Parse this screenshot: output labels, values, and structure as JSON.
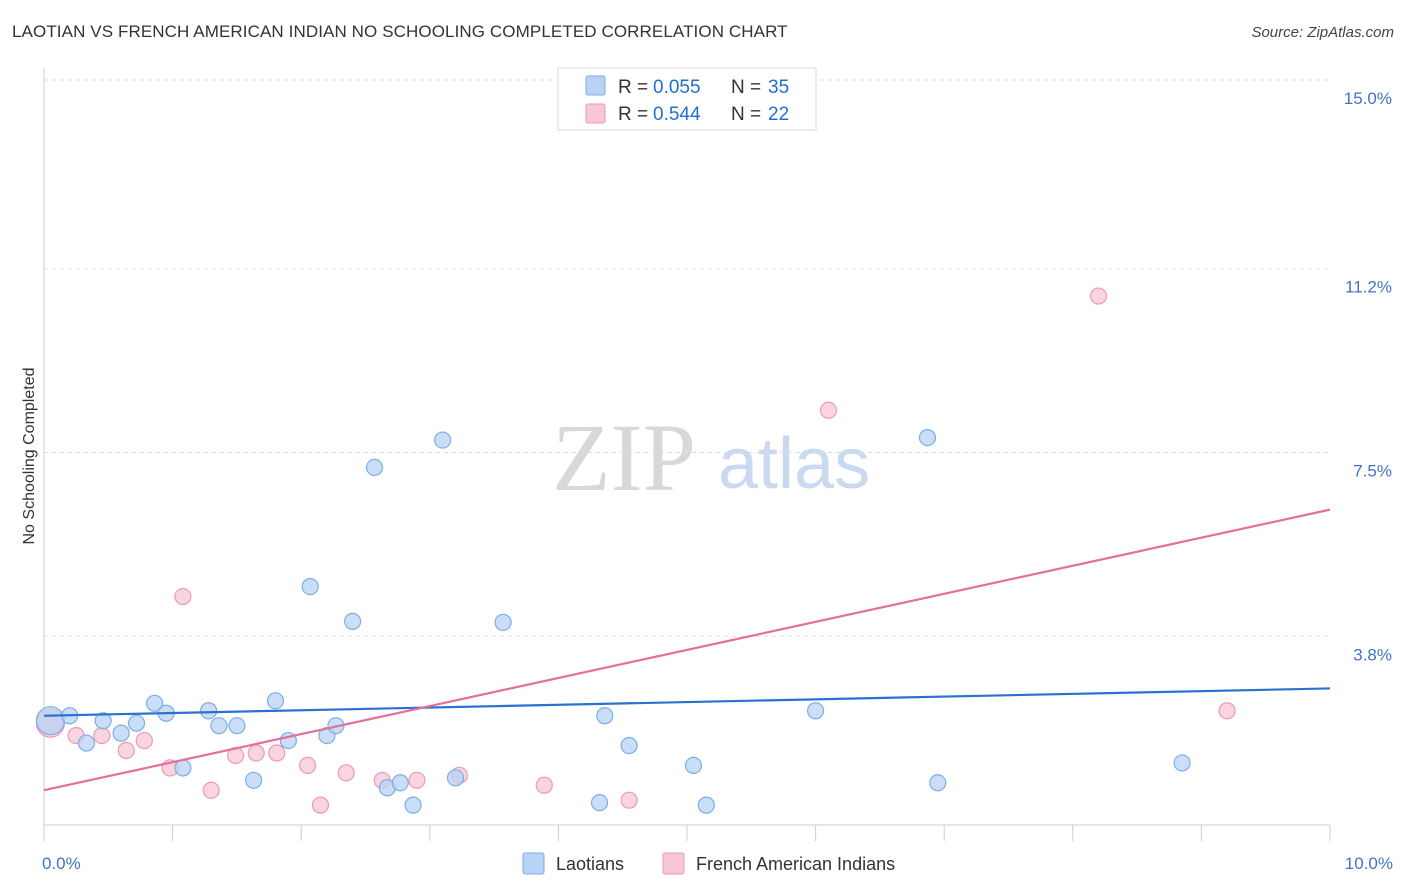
{
  "header": {
    "title": "LAOTIAN VS FRENCH AMERICAN INDIAN NO SCHOOLING COMPLETED CORRELATION CHART",
    "source": "Source: ZipAtlas.com"
  },
  "watermark": {
    "zip": "ZIP",
    "atlas": "atlas"
  },
  "colors": {
    "blue_fill": "#b8d3f5",
    "blue_stroke": "#7aaee8",
    "blue_line": "#2a72d0",
    "pink_fill": "#f8c6d4",
    "pink_stroke": "#ee9ab2",
    "pink_line": "#e36f9a",
    "grid": "#dddddd",
    "tick_label": "#4472c4"
  },
  "legend": {
    "rows": [
      {
        "r_label": "R =",
        "r_value": "0.055",
        "n_label": "N =",
        "n_value": "35"
      },
      {
        "r_label": "R =",
        "r_value": "0.544",
        "n_label": "N =",
        "n_value": "22"
      }
    ]
  },
  "chart_data": {
    "type": "scatter",
    "title": "LAOTIAN VS FRENCH AMERICAN INDIAN NO SCHOOLING COMPLETED CORRELATION CHART",
    "xlabel": "",
    "ylabel": "No Schooling Completed",
    "xlim": [
      0,
      10
    ],
    "ylim": [
      0,
      15
    ],
    "x_tick_labels": [
      {
        "value": 0,
        "label": "0.0%"
      },
      {
        "value": 10,
        "label": "10.0%"
      }
    ],
    "y_tick_labels": [
      {
        "value": 3.8,
        "label": "3.8%"
      },
      {
        "value": 7.5,
        "label": "7.5%"
      },
      {
        "value": 11.2,
        "label": "11.2%"
      },
      {
        "value": 15.0,
        "label": "15.0%"
      }
    ],
    "series": [
      {
        "name": "Laotians",
        "color": "#b8d3f5",
        "r": 0.055,
        "n": 35,
        "trend": {
          "x": [
            0,
            10
          ],
          "y": [
            2.2,
            2.75
          ]
        },
        "points": [
          {
            "x": 0.05,
            "y": 2.1,
            "big": true
          },
          {
            "x": 0.2,
            "y": 2.2
          },
          {
            "x": 0.33,
            "y": 1.65
          },
          {
            "x": 0.46,
            "y": 2.1
          },
          {
            "x": 0.6,
            "y": 1.85
          },
          {
            "x": 0.72,
            "y": 2.05
          },
          {
            "x": 0.86,
            "y": 2.45
          },
          {
            "x": 0.95,
            "y": 2.25
          },
          {
            "x": 1.08,
            "y": 1.15
          },
          {
            "x": 1.28,
            "y": 2.3
          },
          {
            "x": 1.36,
            "y": 2.0
          },
          {
            "x": 1.5,
            "y": 2.0
          },
          {
            "x": 1.63,
            "y": 0.9
          },
          {
            "x": 1.8,
            "y": 2.5
          },
          {
            "x": 1.9,
            "y": 1.7
          },
          {
            "x": 2.07,
            "y": 4.8
          },
          {
            "x": 2.2,
            "y": 1.8
          },
          {
            "x": 2.27,
            "y": 2.0
          },
          {
            "x": 2.4,
            "y": 4.1
          },
          {
            "x": 2.57,
            "y": 7.2
          },
          {
            "x": 2.67,
            "y": 0.75
          },
          {
            "x": 2.77,
            "y": 0.85
          },
          {
            "x": 2.87,
            "y": 0.4
          },
          {
            "x": 3.1,
            "y": 7.75
          },
          {
            "x": 3.2,
            "y": 0.95
          },
          {
            "x": 3.57,
            "y": 4.08
          },
          {
            "x": 4.32,
            "y": 0.45
          },
          {
            "x": 4.36,
            "y": 2.2
          },
          {
            "x": 4.55,
            "y": 1.6
          },
          {
            "x": 5.05,
            "y": 1.2
          },
          {
            "x": 5.15,
            "y": 0.4
          },
          {
            "x": 6.0,
            "y": 2.3
          },
          {
            "x": 6.87,
            "y": 7.8
          },
          {
            "x": 6.95,
            "y": 0.85
          },
          {
            "x": 8.85,
            "y": 1.25
          }
        ]
      },
      {
        "name": "French American Indians",
        "color": "#f8c6d4",
        "r": 0.544,
        "n": 22,
        "trend": {
          "x": [
            0,
            10
          ],
          "y": [
            0.7,
            6.35
          ]
        },
        "points": [
          {
            "x": 0.05,
            "y": 2.05,
            "big": true
          },
          {
            "x": 0.25,
            "y": 1.8
          },
          {
            "x": 0.45,
            "y": 1.8
          },
          {
            "x": 0.64,
            "y": 1.5
          },
          {
            "x": 0.78,
            "y": 1.7
          },
          {
            "x": 0.98,
            "y": 1.15
          },
          {
            "x": 1.08,
            "y": 4.6
          },
          {
            "x": 1.3,
            "y": 0.7
          },
          {
            "x": 1.49,
            "y": 1.4
          },
          {
            "x": 1.65,
            "y": 1.45
          },
          {
            "x": 1.81,
            "y": 1.45
          },
          {
            "x": 2.05,
            "y": 1.2
          },
          {
            "x": 2.15,
            "y": 0.4
          },
          {
            "x": 2.35,
            "y": 1.05
          },
          {
            "x": 2.63,
            "y": 0.9
          },
          {
            "x": 2.9,
            "y": 0.9
          },
          {
            "x": 3.23,
            "y": 1.0
          },
          {
            "x": 3.89,
            "y": 0.8
          },
          {
            "x": 4.55,
            "y": 0.5
          },
          {
            "x": 6.1,
            "y": 8.35
          },
          {
            "x": 8.2,
            "y": 10.65
          },
          {
            "x": 9.2,
            "y": 2.3
          }
        ]
      }
    ]
  }
}
